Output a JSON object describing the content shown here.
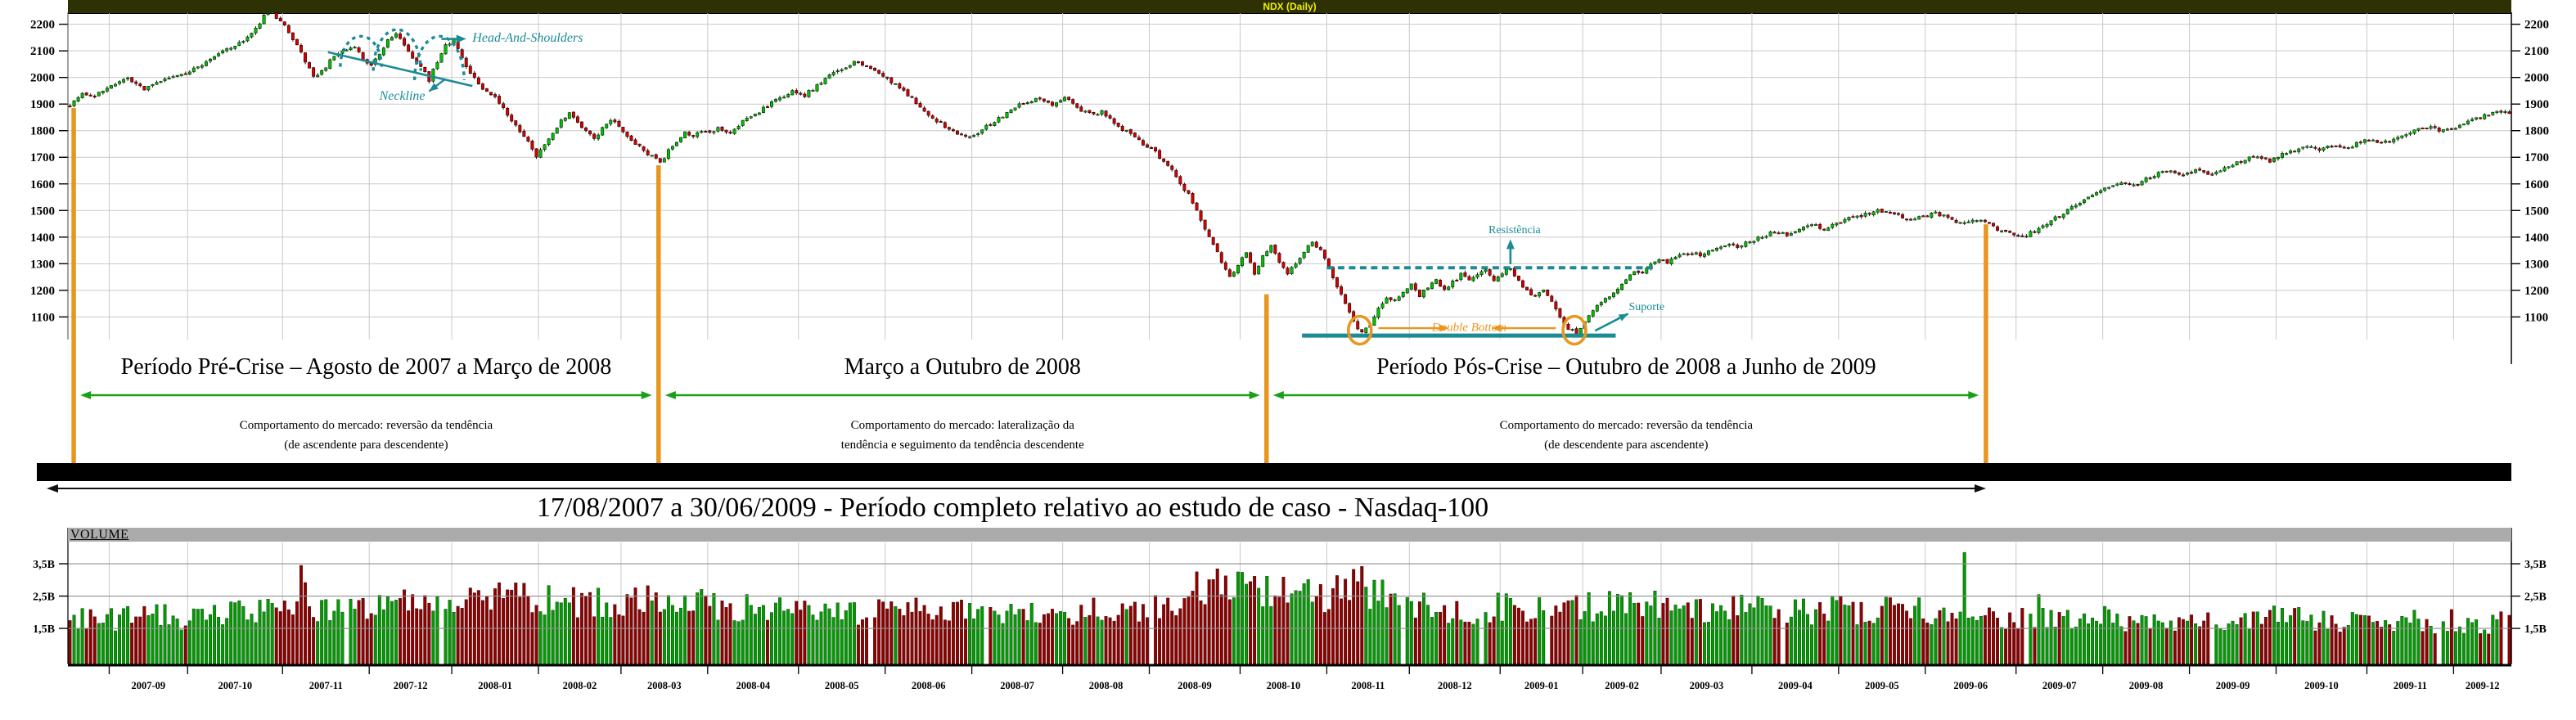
{
  "title_bar": {
    "label": "NDX (Daily)",
    "bg": "#2e3104",
    "fg": "#f0f000"
  },
  "volume_panel": {
    "label": "VOLUME",
    "band_color": "#ababab"
  },
  "colors": {
    "candle_up": "#00c000",
    "candle_down": "#d40000",
    "wick": "#000000",
    "vol_up": "#009b00",
    "vol_down": "#8f0000",
    "teal": "#1b8b96",
    "orange": "#e9961e",
    "period_green": "#18a018",
    "grid": "#c9c9c9",
    "vol_grid": "#8f8f8f",
    "axis": "#000000"
  },
  "chart_data": {
    "type": "candlestick_with_volume",
    "symbol": "NDX (Daily)",
    "x_start_date": "2007-08-17",
    "x_end_date": "2009-12-31",
    "trading_days": 592,
    "price_axis_ticks": [
      2200,
      2100,
      2000,
      1900,
      1800,
      1700,
      1600,
      1500,
      1400,
      1300,
      1200,
      1100
    ],
    "price_range": [
      1015,
      2245
    ],
    "volume_axis_ticks": [
      {
        "label": "3,5B",
        "value": 3.5
      },
      {
        "label": "2,5B",
        "value": 2.5
      },
      {
        "label": "1,5B",
        "value": 1.5
      }
    ],
    "volume_range_billions": [
      0.4,
      4.1
    ],
    "month_labels": [
      "2007-09",
      "2007-10",
      "2007-11",
      "2007-12",
      "2008-01",
      "2008-02",
      "2008-03",
      "2008-04",
      "2008-05",
      "2008-06",
      "2008-07",
      "2008-08",
      "2008-09",
      "2008-10",
      "2008-11",
      "2008-12",
      "2009-01",
      "2009-02",
      "2009-03",
      "2009-04",
      "2009-05",
      "2009-06",
      "2009-07",
      "2009-08",
      "2009-09",
      "2009-10",
      "2009-11",
      "2009-12"
    ],
    "month_boundaries_day_index": [
      10,
      29,
      52,
      73,
      93,
      114,
      134,
      155,
      177,
      198,
      219,
      241,
      262,
      284,
      305,
      325,
      347,
      367,
      386,
      408,
      429,
      450,
      472,
      493,
      514,
      535,
      557,
      578
    ],
    "price_path_anchors": [
      [
        0,
        1900
      ],
      [
        3,
        1942
      ],
      [
        6,
        1928
      ],
      [
        10,
        1972
      ],
      [
        14,
        1992
      ],
      [
        18,
        1955
      ],
      [
        22,
        1985
      ],
      [
        26,
        2008
      ],
      [
        29,
        2022
      ],
      [
        33,
        2060
      ],
      [
        37,
        2098
      ],
      [
        41,
        2128
      ],
      [
        44,
        2162
      ],
      [
        47,
        2230
      ],
      [
        49,
        2239
      ],
      [
        51,
        2215
      ],
      [
        53,
        2165
      ],
      [
        55,
        2120
      ],
      [
        57,
        2060
      ],
      [
        59,
        2005
      ],
      [
        61,
        2020
      ],
      [
        63,
        2062
      ],
      [
        65,
        2085
      ],
      [
        67,
        2105
      ],
      [
        69,
        2118
      ],
      [
        71,
        2065
      ],
      [
        73,
        2042
      ],
      [
        75,
        2088
      ],
      [
        77,
        2142
      ],
      [
        79,
        2165
      ],
      [
        81,
        2120
      ],
      [
        83,
        2065
      ],
      [
        85,
        2038
      ],
      [
        87,
        1992
      ],
      [
        89,
        2058
      ],
      [
        91,
        2125
      ],
      [
        93,
        2138
      ],
      [
        95,
        2080
      ],
      [
        97,
        2012
      ],
      [
        99,
        1978
      ],
      [
        101,
        1945
      ],
      [
        103,
        1925
      ],
      [
        105,
        1880
      ],
      [
        107,
        1838
      ],
      [
        109,
        1800
      ],
      [
        111,
        1758
      ],
      [
        113,
        1705
      ],
      [
        115,
        1748
      ],
      [
        117,
        1788
      ],
      [
        119,
        1838
      ],
      [
        121,
        1862
      ],
      [
        123,
        1832
      ],
      [
        125,
        1798
      ],
      [
        127,
        1772
      ],
      [
        129,
        1808
      ],
      [
        131,
        1842
      ],
      [
        133,
        1812
      ],
      [
        135,
        1782
      ],
      [
        137,
        1748
      ],
      [
        139,
        1725
      ],
      [
        141,
        1702
      ],
      [
        143,
        1678
      ],
      [
        145,
        1722
      ],
      [
        147,
        1762
      ],
      [
        149,
        1795
      ],
      [
        151,
        1778
      ],
      [
        153,
        1800
      ],
      [
        155,
        1788
      ],
      [
        157,
        1812
      ],
      [
        160,
        1792
      ],
      [
        163,
        1835
      ],
      [
        166,
        1862
      ],
      [
        169,
        1892
      ],
      [
        172,
        1922
      ],
      [
        175,
        1945
      ],
      [
        178,
        1932
      ],
      [
        181,
        1972
      ],
      [
        184,
        2005
      ],
      [
        187,
        2035
      ],
      [
        190,
        2058
      ],
      [
        193,
        2038
      ],
      [
        196,
        2015
      ],
      [
        199,
        1982
      ],
      [
        202,
        1948
      ],
      [
        205,
        1902
      ],
      [
        208,
        1862
      ],
      [
        211,
        1828
      ],
      [
        214,
        1798
      ],
      [
        217,
        1775
      ],
      [
        220,
        1792
      ],
      [
        223,
        1825
      ],
      [
        226,
        1858
      ],
      [
        229,
        1888
      ],
      [
        232,
        1912
      ],
      [
        235,
        1925
      ],
      [
        238,
        1898
      ],
      [
        241,
        1922
      ],
      [
        244,
        1888
      ],
      [
        247,
        1862
      ],
      [
        250,
        1872
      ],
      [
        253,
        1825
      ],
      [
        256,
        1795
      ],
      [
        259,
        1762
      ],
      [
        262,
        1732
      ],
      [
        265,
        1688
      ],
      [
        267,
        1648
      ],
      [
        269,
        1602
      ],
      [
        271,
        1558
      ],
      [
        273,
        1495
      ],
      [
        275,
        1432
      ],
      [
        277,
        1378
      ],
      [
        279,
        1310
      ],
      [
        281,
        1245
      ],
      [
        283,
        1292
      ],
      [
        285,
        1340
      ],
      [
        287,
        1265
      ],
      [
        289,
        1325
      ],
      [
        291,
        1362
      ],
      [
        293,
        1302
      ],
      [
        295,
        1262
      ],
      [
        297,
        1305
      ],
      [
        299,
        1345
      ],
      [
        301,
        1382
      ],
      [
        303,
        1352
      ],
      [
        305,
        1282
      ],
      [
        307,
        1215
      ],
      [
        309,
        1152
      ],
      [
        311,
        1085
      ],
      [
        313,
        1038
      ],
      [
        315,
        1075
      ],
      [
        317,
        1135
      ],
      [
        319,
        1178
      ],
      [
        321,
        1162
      ],
      [
        323,
        1192
      ],
      [
        325,
        1228
      ],
      [
        327,
        1182
      ],
      [
        329,
        1212
      ],
      [
        331,
        1242
      ],
      [
        333,
        1202
      ],
      [
        335,
        1232
      ],
      [
        337,
        1258
      ],
      [
        339,
        1232
      ],
      [
        341,
        1255
      ],
      [
        343,
        1275
      ],
      [
        345,
        1242
      ],
      [
        347,
        1268
      ],
      [
        349,
        1280
      ],
      [
        351,
        1235
      ],
      [
        353,
        1202
      ],
      [
        355,
        1172
      ],
      [
        357,
        1208
      ],
      [
        359,
        1158
      ],
      [
        361,
        1102
      ],
      [
        363,
        1058
      ],
      [
        365,
        1042
      ],
      [
        367,
        1082
      ],
      [
        369,
        1122
      ],
      [
        371,
        1152
      ],
      [
        373,
        1182
      ],
      [
        375,
        1212
      ],
      [
        377,
        1242
      ],
      [
        379,
        1272
      ],
      [
        381,
        1262
      ],
      [
        383,
        1295
      ],
      [
        385,
        1315
      ],
      [
        387,
        1305
      ],
      [
        389,
        1328
      ],
      [
        392,
        1342
      ],
      [
        395,
        1332
      ],
      [
        398,
        1355
      ],
      [
        401,
        1372
      ],
      [
        404,
        1362
      ],
      [
        407,
        1385
      ],
      [
        410,
        1402
      ],
      [
        413,
        1422
      ],
      [
        416,
        1408
      ],
      [
        419,
        1432
      ],
      [
        422,
        1448
      ],
      [
        425,
        1428
      ],
      [
        428,
        1452
      ],
      [
        431,
        1468
      ],
      [
        434,
        1482
      ],
      [
        437,
        1495
      ],
      [
        440,
        1502
      ],
      [
        443,
        1482
      ],
      [
        446,
        1468
      ],
      [
        449,
        1478
      ],
      [
        452,
        1492
      ],
      [
        455,
        1472
      ],
      [
        458,
        1452
      ],
      [
        461,
        1468
      ],
      [
        464,
        1458
      ],
      [
        467,
        1432
      ],
      [
        470,
        1412
      ],
      [
        473,
        1402
      ],
      [
        476,
        1422
      ],
      [
        479,
        1452
      ],
      [
        482,
        1482
      ],
      [
        485,
        1512
      ],
      [
        488,
        1542
      ],
      [
        491,
        1568
      ],
      [
        494,
        1588
      ],
      [
        497,
        1605
      ],
      [
        500,
        1592
      ],
      [
        503,
        1618
      ],
      [
        506,
        1638
      ],
      [
        509,
        1652
      ],
      [
        512,
        1638
      ],
      [
        515,
        1655
      ],
      [
        518,
        1632
      ],
      [
        521,
        1655
      ],
      [
        524,
        1675
      ],
      [
        527,
        1692
      ],
      [
        530,
        1705
      ],
      [
        533,
        1688
      ],
      [
        536,
        1712
      ],
      [
        539,
        1728
      ],
      [
        542,
        1742
      ],
      [
        545,
        1728
      ],
      [
        548,
        1748
      ],
      [
        551,
        1732
      ],
      [
        554,
        1752
      ],
      [
        557,
        1768
      ],
      [
        560,
        1748
      ],
      [
        563,
        1772
      ],
      [
        566,
        1788
      ],
      [
        569,
        1802
      ],
      [
        572,
        1818
      ],
      [
        575,
        1798
      ],
      [
        578,
        1812
      ],
      [
        581,
        1835
      ],
      [
        584,
        1852
      ],
      [
        587,
        1868
      ],
      [
        590,
        1872
      ],
      [
        592,
        1868
      ]
    ],
    "volume_anchors_billions": [
      [
        0,
        1.72
      ],
      [
        10,
        1.78
      ],
      [
        20,
        1.82
      ],
      [
        30,
        1.85
      ],
      [
        40,
        1.92
      ],
      [
        50,
        2.05
      ],
      [
        58,
        2.15
      ],
      [
        70,
        2.2
      ],
      [
        80,
        2.3
      ],
      [
        90,
        2.25
      ],
      [
        100,
        2.4
      ],
      [
        110,
        2.45
      ],
      [
        120,
        2.3
      ],
      [
        130,
        2.25
      ],
      [
        140,
        2.4
      ],
      [
        150,
        2.25
      ],
      [
        160,
        2.1
      ],
      [
        170,
        2.05
      ],
      [
        180,
        2.1
      ],
      [
        190,
        2.0
      ],
      [
        200,
        1.95
      ],
      [
        210,
        2.05
      ],
      [
        220,
        1.9
      ],
      [
        230,
        2.0
      ],
      [
        240,
        1.95
      ],
      [
        250,
        2.05
      ],
      [
        260,
        2.15
      ],
      [
        266,
        2.35
      ],
      [
        272,
        2.6
      ],
      [
        278,
        2.9
      ],
      [
        283,
        3.1
      ],
      [
        288,
        2.75
      ],
      [
        294,
        2.55
      ],
      [
        300,
        2.45
      ],
      [
        306,
        2.6
      ],
      [
        312,
        2.85
      ],
      [
        318,
        2.45
      ],
      [
        324,
        2.25
      ],
      [
        330,
        2.15
      ],
      [
        336,
        2.05
      ],
      [
        342,
        2.1
      ],
      [
        348,
        2.2
      ],
      [
        354,
        2.05
      ],
      [
        360,
        1.98
      ],
      [
        366,
        2.1
      ],
      [
        372,
        2.25
      ],
      [
        377,
        2.4
      ],
      [
        382,
        2.2
      ],
      [
        390,
        2.1
      ],
      [
        400,
        2.05
      ],
      [
        410,
        2.1
      ],
      [
        420,
        1.98
      ],
      [
        430,
        2.05
      ],
      [
        440,
        2.12
      ],
      [
        450,
        1.98
      ],
      [
        460,
        1.92
      ],
      [
        470,
        1.88
      ],
      [
        480,
        1.92
      ],
      [
        490,
        1.82
      ],
      [
        500,
        1.78
      ],
      [
        510,
        1.82
      ],
      [
        520,
        1.72
      ],
      [
        530,
        1.78
      ],
      [
        540,
        1.82
      ],
      [
        550,
        1.72
      ],
      [
        560,
        1.78
      ],
      [
        570,
        1.68
      ],
      [
        580,
        1.72
      ],
      [
        592,
        1.62
      ]
    ],
    "volume_spikes": [
      [
        56,
        3.45
      ],
      [
        57,
        2.92
      ],
      [
        110,
        2.9
      ],
      [
        283,
        3.25
      ],
      [
        312,
        2.95
      ],
      [
        459,
        3.85
      ],
      [
        477,
        2.55
      ]
    ],
    "no_volume_days": [
      67,
      90,
      194,
      222,
      262,
      323,
      342,
      358,
      415,
      474,
      519,
      574,
      590
    ],
    "dividers": {
      "color": "#e9961e",
      "items": [
        {
          "day": 1.4,
          "top_price": 1885
        },
        {
          "day": 143.1,
          "top_price": 1670
        },
        {
          "day": 290.4,
          "top_price": 1185
        },
        {
          "day": 464.7,
          "top_price": 1448
        }
      ]
    },
    "periods": [
      {
        "title": "Período Pré-Crise – Agosto de 2007 a Março de 2008",
        "behavior": [
          "Comportamento do mercado: reversão  da tendência",
          "(de ascendente para descendente)"
        ],
        "arrow_from_day": 3,
        "arrow_to_day": 141.5
      },
      {
        "title": "Março a Outubro de 2008",
        "behavior": [
          "Comportamento do mercado: lateralização  da",
          "tendência e seguimento da tendência descendente"
        ],
        "arrow_from_day": 144.7,
        "arrow_to_day": 288.8
      },
      {
        "title": "Período Pós-Crise – Outubro de 2008 a Junho de 2009",
        "behavior": [
          "Comportamento do mercado: reversão  da tendência",
          "(de descendente para ascendente)"
        ],
        "arrow_from_day": 292,
        "arrow_to_day": 463
      }
    ],
    "study_period": {
      "label": "17/08/2007 a 30/06/2009 - Período completo relativo ao estudo de caso - Nasdaq-100"
    },
    "annotations": {
      "head_and_shoulders": {
        "label": "Head-And-Shoulders",
        "color": "#1b8b96",
        "arcs": [
          [
            66,
            76,
            2155,
            2040
          ],
          [
            74,
            85.5,
            2180,
            2025
          ],
          [
            84,
            96,
            2155,
            1990
          ]
        ],
        "label_at": [
          98,
          2148
        ],
        "arrow_from": [
          90.5,
          2145
        ],
        "arrow_to": [
          96.5,
          2145
        ],
        "neckline": {
          "label": "Neckline",
          "from": [
            63,
            2095
          ],
          "to": [
            98,
            1968
          ],
          "arrow_from": [
            91.5,
            1995
          ],
          "arrow_to": [
            87.5,
            1948
          ],
          "label_at": [
            81,
            1928
          ]
        }
      },
      "resistance": {
        "label": "Resistência",
        "color": "#1b8b96",
        "price": 1285,
        "from_day": 305,
        "to_day": 384,
        "label_at": [
          350.5,
          1425
        ],
        "arrow_day": 349.5,
        "arrow_from_price": 1298,
        "arrow_to_price": 1392
      },
      "support": {
        "label": "Suporte",
        "color": "#1b8b96",
        "price": 1030,
        "from_day": 299,
        "to_day": 375,
        "label_at": [
          382.5,
          1135
        ],
        "arrow_from": [
          370,
          1048
        ],
        "arrow_to": [
          378,
          1112
        ]
      },
      "double_bottom": {
        "label": "Double Bottom",
        "color": "#e9961e",
        "circles": [
          [
            313,
            1050
          ],
          [
            365,
            1050
          ]
        ],
        "label_at": [
          339.5,
          1058
        ],
        "arrow_price": 1058,
        "arrows": [
          [
            317.5,
            334.5
          ],
          [
            360.5,
            345
          ]
        ]
      }
    }
  }
}
